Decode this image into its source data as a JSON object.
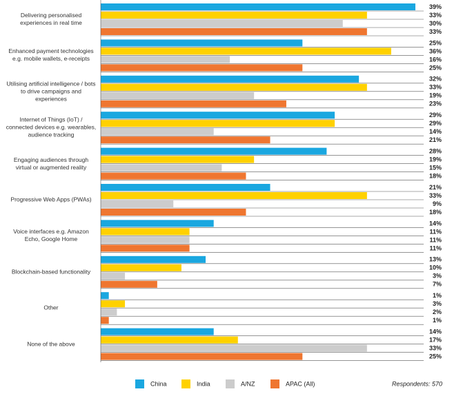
{
  "chart_data": {
    "type": "bar",
    "orientation": "horizontal",
    "categories": [
      "Delivering personalised experiences in real time",
      "Enhanced payment technologies e.g. mobile wallets, e-receipts",
      "Utilising artificial intelligence / bots to drive campaigns and experiences",
      "Internet of Things (IoT) / connected devices e.g. wearables, audience tracking",
      "Engaging audiences through virtual or augmented reality",
      "Progressive Web Apps (PWAs)",
      "Voice interfaces e.g. Amazon Echo, Google Home",
      "Blockchain-based functionality",
      "Other",
      "None of the above"
    ],
    "series": [
      {
        "name": "China",
        "color": "#1aa7e0",
        "values": [
          39,
          25,
          32,
          29,
          28,
          21,
          14,
          13,
          1,
          14
        ],
        "value_labels": [
          "39%",
          "25%",
          "32%",
          "29%",
          "28%",
          "21%",
          "14%",
          "13%",
          "1%",
          "14%"
        ]
      },
      {
        "name": "India",
        "color": "#ffd100",
        "values": [
          33,
          36,
          33,
          29,
          19,
          33,
          11,
          10,
          3,
          17
        ],
        "value_labels": [
          "33%",
          "36%",
          "33%",
          "29%",
          "19%",
          "33%",
          "11%",
          "10%",
          "3%",
          "17%"
        ]
      },
      {
        "name": "A/NZ",
        "color": "#cccccc",
        "values": [
          30,
          16,
          19,
          14,
          15,
          9,
          11,
          3,
          2,
          33
        ],
        "value_labels": [
          "30%",
          "16%",
          "19%",
          "14%",
          "15%",
          "9%",
          "11%",
          "3%",
          "2%",
          "33%"
        ]
      },
      {
        "name": "APAC (All)",
        "color": "#ef7630",
        "values": [
          33,
          25,
          23,
          21,
          18,
          18,
          11,
          7,
          1,
          25
        ],
        "value_labels": [
          "33%",
          "25%",
          "23%",
          "21%",
          "18%",
          "18%",
          "11%",
          "7%",
          "1%",
          "25%"
        ]
      }
    ],
    "note": "Respondents: 570",
    "legend": "bottom"
  }
}
